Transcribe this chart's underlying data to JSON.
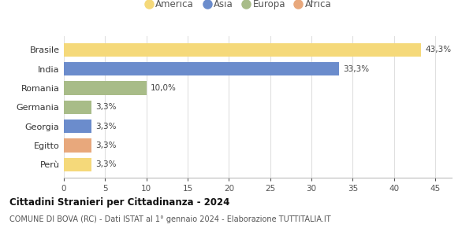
{
  "categories": [
    "Perù",
    "Egitto",
    "Georgia",
    "Germania",
    "Romania",
    "India",
    "Brasile"
  ],
  "values": [
    3.3,
    3.3,
    3.3,
    3.3,
    10.0,
    33.3,
    43.3
  ],
  "bar_colors": [
    "#f5d97a",
    "#e8a87c",
    "#6b8ccc",
    "#a8bc88",
    "#a8bc88",
    "#6b8ccc",
    "#f5d97a"
  ],
  "labels": [
    "3,3%",
    "3,3%",
    "3,3%",
    "3,3%",
    "10,0%",
    "33,3%",
    "43,3%"
  ],
  "continent_colors": {
    "America": "#f5d97a",
    "Asia": "#6b8ccc",
    "Europa": "#a8bc88",
    "Africa": "#e8a87c"
  },
  "legend_order": [
    "America",
    "Asia",
    "Europa",
    "Africa"
  ],
  "xlim": [
    0,
    47
  ],
  "xticks": [
    0,
    5,
    10,
    15,
    20,
    25,
    30,
    35,
    40,
    45
  ],
  "title": "Cittadini Stranieri per Cittadinanza - 2024",
  "subtitle": "COMUNE DI BOVA (RC) - Dati ISTAT al 1° gennaio 2024 - Elaborazione TUTTITALIA.IT",
  "background_color": "#ffffff",
  "grid_color": "#e0e0e0"
}
